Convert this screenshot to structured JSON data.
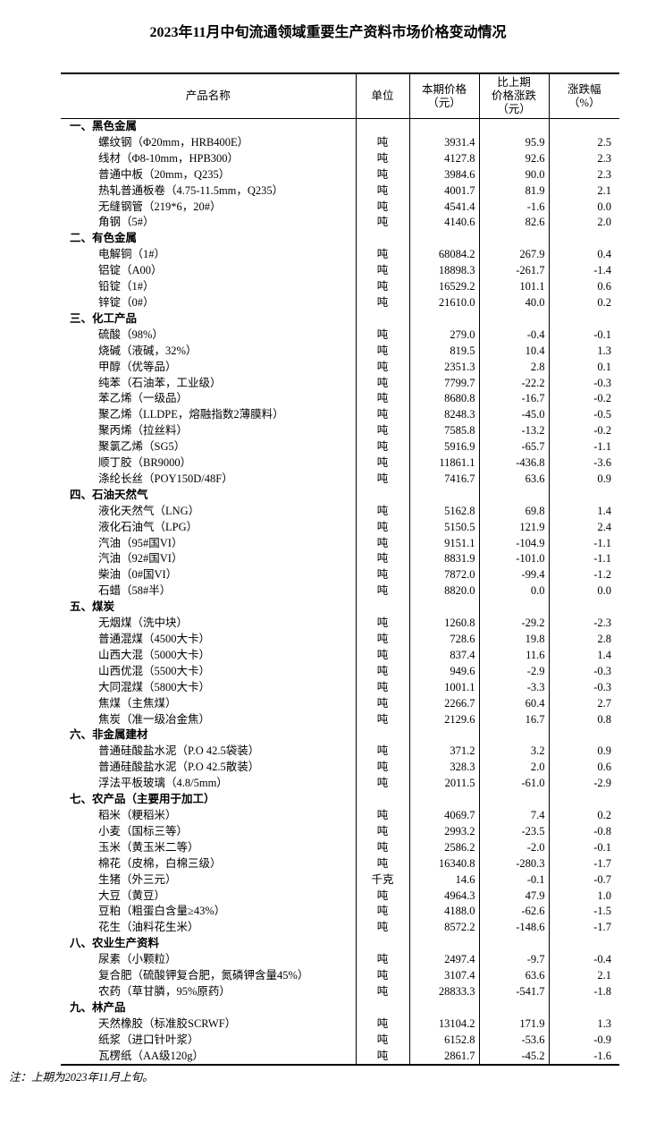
{
  "title": "2023年11月中旬流通领域重要生产资料市场价格变动情况",
  "footnote": "注：上期为2023年11月上旬。",
  "table": {
    "columns": [
      "产品名称",
      "单位",
      "本期价格\n（元）",
      "比上期\n价格涨跌\n（元）",
      "涨跌幅\n（%）"
    ],
    "sections": [
      {
        "heading": "一、黑色金属",
        "rows": [
          [
            "螺纹钢（Φ20mm，HRB400E）",
            "吨",
            "3931.4",
            "95.9",
            "2.5"
          ],
          [
            "线材（Φ8-10mm，HPB300）",
            "吨",
            "4127.8",
            "92.6",
            "2.3"
          ],
          [
            "普通中板（20mm，Q235）",
            "吨",
            "3984.6",
            "90.0",
            "2.3"
          ],
          [
            "热轧普通板卷（4.75-11.5mm，Q235）",
            "吨",
            "4001.7",
            "81.9",
            "2.1"
          ],
          [
            "无缝钢管（219*6，20#）",
            "吨",
            "4541.4",
            "-1.6",
            "0.0"
          ],
          [
            "角钢（5#）",
            "吨",
            "4140.6",
            "82.6",
            "2.0"
          ]
        ]
      },
      {
        "heading": "二、有色金属",
        "rows": [
          [
            "电解铜（1#）",
            "吨",
            "68084.2",
            "267.9",
            "0.4"
          ],
          [
            "铝锭（A00）",
            "吨",
            "18898.3",
            "-261.7",
            "-1.4"
          ],
          [
            "铅锭（1#）",
            "吨",
            "16529.2",
            "101.1",
            "0.6"
          ],
          [
            "锌锭（0#）",
            "吨",
            "21610.0",
            "40.0",
            "0.2"
          ]
        ]
      },
      {
        "heading": "三、化工产品",
        "rows": [
          [
            "硫酸（98%）",
            "吨",
            "279.0",
            "-0.4",
            "-0.1"
          ],
          [
            "烧碱（液碱，32%）",
            "吨",
            "819.5",
            "10.4",
            "1.3"
          ],
          [
            "甲醇（优等品）",
            "吨",
            "2351.3",
            "2.8",
            "0.1"
          ],
          [
            "纯苯（石油苯，工业级）",
            "吨",
            "7799.7",
            "-22.2",
            "-0.3"
          ],
          [
            "苯乙烯（一级品）",
            "吨",
            "8680.8",
            "-16.7",
            "-0.2"
          ],
          [
            "聚乙烯（LLDPE，熔融指数2薄膜料）",
            "吨",
            "8248.3",
            "-45.0",
            "-0.5"
          ],
          [
            "聚丙烯（拉丝料）",
            "吨",
            "7585.8",
            "-13.2",
            "-0.2"
          ],
          [
            "聚氯乙烯（SG5）",
            "吨",
            "5916.9",
            "-65.7",
            "-1.1"
          ],
          [
            "顺丁胶（BR9000）",
            "吨",
            "11861.1",
            "-436.8",
            "-3.6"
          ],
          [
            "涤纶长丝（POY150D/48F）",
            "吨",
            "7416.7",
            "63.6",
            "0.9"
          ]
        ]
      },
      {
        "heading": "四、石油天然气",
        "rows": [
          [
            "液化天然气（LNG）",
            "吨",
            "5162.8",
            "69.8",
            "1.4"
          ],
          [
            "液化石油气（LPG）",
            "吨",
            "5150.5",
            "121.9",
            "2.4"
          ],
          [
            "汽油（95#国VI）",
            "吨",
            "9151.1",
            "-104.9",
            "-1.1"
          ],
          [
            "汽油（92#国VI）",
            "吨",
            "8831.9",
            "-101.0",
            "-1.1"
          ],
          [
            "柴油（0#国VI）",
            "吨",
            "7872.0",
            "-99.4",
            "-1.2"
          ],
          [
            "石蜡（58#半）",
            "吨",
            "8820.0",
            "0.0",
            "0.0"
          ]
        ]
      },
      {
        "heading": "五、煤炭",
        "rows": [
          [
            "无烟煤（洗中块）",
            "吨",
            "1260.8",
            "-29.2",
            "-2.3"
          ],
          [
            "普通混煤（4500大卡）",
            "吨",
            "728.6",
            "19.8",
            "2.8"
          ],
          [
            "山西大混（5000大卡）",
            "吨",
            "837.4",
            "11.6",
            "1.4"
          ],
          [
            "山西优混（5500大卡）",
            "吨",
            "949.6",
            "-2.9",
            "-0.3"
          ],
          [
            "大同混煤（5800大卡）",
            "吨",
            "1001.1",
            "-3.3",
            "-0.3"
          ],
          [
            "焦煤（主焦煤）",
            "吨",
            "2266.7",
            "60.4",
            "2.7"
          ],
          [
            "焦炭（准一级冶金焦）",
            "吨",
            "2129.6",
            "16.7",
            "0.8"
          ]
        ]
      },
      {
        "heading": "六、非金属建材",
        "rows": [
          [
            "普通硅酸盐水泥（P.O 42.5袋装）",
            "吨",
            "371.2",
            "3.2",
            "0.9"
          ],
          [
            "普通硅酸盐水泥（P.O 42.5散装）",
            "吨",
            "328.3",
            "2.0",
            "0.6"
          ],
          [
            "浮法平板玻璃（4.8/5mm）",
            "吨",
            "2011.5",
            "-61.0",
            "-2.9"
          ]
        ]
      },
      {
        "heading": "七、农产品（主要用于加工）",
        "rows": [
          [
            "稻米（粳稻米）",
            "吨",
            "4069.7",
            "7.4",
            "0.2"
          ],
          [
            "小麦（国标三等）",
            "吨",
            "2993.2",
            "-23.5",
            "-0.8"
          ],
          [
            "玉米（黄玉米二等）",
            "吨",
            "2586.2",
            "-2.0",
            "-0.1"
          ],
          [
            "棉花（皮棉，白棉三级）",
            "吨",
            "16340.8",
            "-280.3",
            "-1.7"
          ],
          [
            "生猪（外三元）",
            "千克",
            "14.6",
            "-0.1",
            "-0.7"
          ],
          [
            "大豆（黄豆）",
            "吨",
            "4964.3",
            "47.9",
            "1.0"
          ],
          [
            "豆粕（粗蛋白含量≥43%）",
            "吨",
            "4188.0",
            "-62.6",
            "-1.5"
          ],
          [
            "花生（油料花生米）",
            "吨",
            "8572.2",
            "-148.6",
            "-1.7"
          ]
        ]
      },
      {
        "heading": "八、农业生产资料",
        "rows": [
          [
            "尿素（小颗粒）",
            "吨",
            "2497.4",
            "-9.7",
            "-0.4"
          ],
          [
            "复合肥（硫酸钾复合肥，氮磷钾含量45%）",
            "吨",
            "3107.4",
            "63.6",
            "2.1"
          ],
          [
            "农药（草甘膦，95%原药）",
            "吨",
            "28833.3",
            "-541.7",
            "-1.8"
          ]
        ]
      },
      {
        "heading": "九、林产品",
        "rows": [
          [
            "天然橡胶（标准胶SCRWF）",
            "吨",
            "13104.2",
            "171.9",
            "1.3"
          ],
          [
            "纸浆（进口针叶浆）",
            "吨",
            "6152.8",
            "-53.6",
            "-0.9"
          ],
          [
            "瓦楞纸（AA级120g）",
            "吨",
            "2861.7",
            "-45.2",
            "-1.6"
          ]
        ]
      }
    ]
  }
}
